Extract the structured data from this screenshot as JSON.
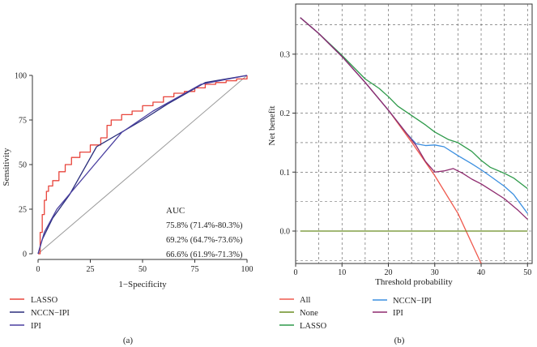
{
  "chart_data": [
    {
      "type": "line",
      "subtype": "roc",
      "panel_label": "(a)",
      "xlabel": "1−Specificity",
      "ylabel": "Sensitivity",
      "xlim": [
        0,
        100
      ],
      "ylim": [
        0,
        100
      ],
      "xticks": [
        0,
        25,
        50,
        75,
        100
      ],
      "yticks": [
        0,
        25,
        50,
        75,
        100
      ],
      "auc_title": "AUC",
      "auc_values": [
        "75.8% (71.4%-80.3%)",
        "69.2% (64.7%-73.6%)",
        "66.6% (61.9%-71.3%)"
      ],
      "legend": [
        "LASSO",
        "NCCN−IPI",
        "IPI"
      ],
      "reference_line": {
        "x": [
          0,
          100
        ],
        "y": [
          0,
          100
        ]
      },
      "series": [
        {
          "name": "LASSO",
          "color": "#e8453c",
          "x": [
            0,
            1,
            2,
            3,
            4,
            5,
            7,
            10,
            13,
            16,
            20,
            25,
            30,
            33,
            35,
            40,
            45,
            50,
            55,
            60,
            65,
            70,
            75,
            80,
            85,
            90,
            95,
            100
          ],
          "y": [
            0,
            12,
            22,
            30,
            35,
            38,
            41,
            46,
            50,
            54,
            57,
            61,
            65,
            72,
            75,
            78,
            80,
            83,
            85,
            88,
            90,
            91,
            93,
            95,
            96,
            97,
            98,
            100
          ]
        },
        {
          "name": "NCCN−IPI",
          "color": "#2b2f7c",
          "x": [
            0,
            2,
            7,
            15,
            28,
            50,
            62,
            80,
            100
          ],
          "y": [
            0,
            8,
            20,
            33,
            60,
            75,
            84,
            96,
            100
          ]
        },
        {
          "name": "IPI",
          "color": "#4a3fa0",
          "x": [
            0,
            3,
            9,
            27,
            40,
            55,
            78,
            100
          ],
          "y": [
            0,
            12,
            25,
            50,
            68,
            80,
            95,
            100
          ]
        }
      ]
    },
    {
      "type": "line",
      "subtype": "decision_curve",
      "panel_label": "(b)",
      "xlabel": "Threshold probability",
      "ylabel": "Net benefit",
      "xlim": [
        0,
        51
      ],
      "ylim": [
        -0.055,
        0.385
      ],
      "xticks": [
        0,
        10,
        20,
        30,
        40,
        50
      ],
      "yticks": [
        0.0,
        0.1,
        0.2,
        0.3
      ],
      "ytick_labels": [
        "0.0",
        "0.1",
        "0.2",
        "0.3"
      ],
      "legend": [
        "All",
        "NCCN−IPI",
        "None",
        "IPI",
        "LASSO"
      ],
      "series": [
        {
          "name": "All",
          "color": "#ef5a4e",
          "x": [
            1,
            5,
            10,
            15,
            20,
            25,
            30,
            35,
            40
          ],
          "y": [
            0.362,
            0.335,
            0.296,
            0.252,
            0.205,
            0.151,
            0.094,
            0.03,
            -0.055
          ]
        },
        {
          "name": "None",
          "color": "#6b8e23",
          "x": [
            1,
            50
          ],
          "y": [
            0.0,
            0.0
          ]
        },
        {
          "name": "LASSO",
          "color": "#2e9a4a",
          "x": [
            1,
            5,
            10,
            15,
            18,
            20,
            22,
            25,
            28,
            30,
            33,
            35,
            38,
            40,
            42,
            45,
            47,
            50
          ],
          "y": [
            0.362,
            0.335,
            0.298,
            0.258,
            0.242,
            0.228,
            0.212,
            0.196,
            0.18,
            0.168,
            0.155,
            0.15,
            0.135,
            0.12,
            0.108,
            0.098,
            0.09,
            0.072
          ]
        },
        {
          "name": "NCCN−IPI",
          "color": "#3b8fe0",
          "x": [
            1,
            5,
            10,
            15,
            20,
            24,
            26,
            28,
            30,
            32,
            35,
            38,
            40,
            42,
            45,
            47,
            50
          ],
          "y": [
            0.362,
            0.335,
            0.296,
            0.252,
            0.205,
            0.165,
            0.148,
            0.145,
            0.146,
            0.143,
            0.128,
            0.114,
            0.104,
            0.093,
            0.076,
            0.062,
            0.03
          ]
        },
        {
          "name": "IPI",
          "color": "#8e2a6e",
          "x": [
            1,
            5,
            10,
            15,
            20,
            24,
            26,
            28,
            30,
            32,
            34,
            36,
            38,
            40,
            42,
            45,
            48,
            50
          ],
          "y": [
            0.362,
            0.335,
            0.296,
            0.252,
            0.205,
            0.165,
            0.145,
            0.118,
            0.1,
            0.102,
            0.106,
            0.098,
            0.088,
            0.08,
            0.07,
            0.055,
            0.035,
            0.02
          ]
        }
      ]
    }
  ]
}
